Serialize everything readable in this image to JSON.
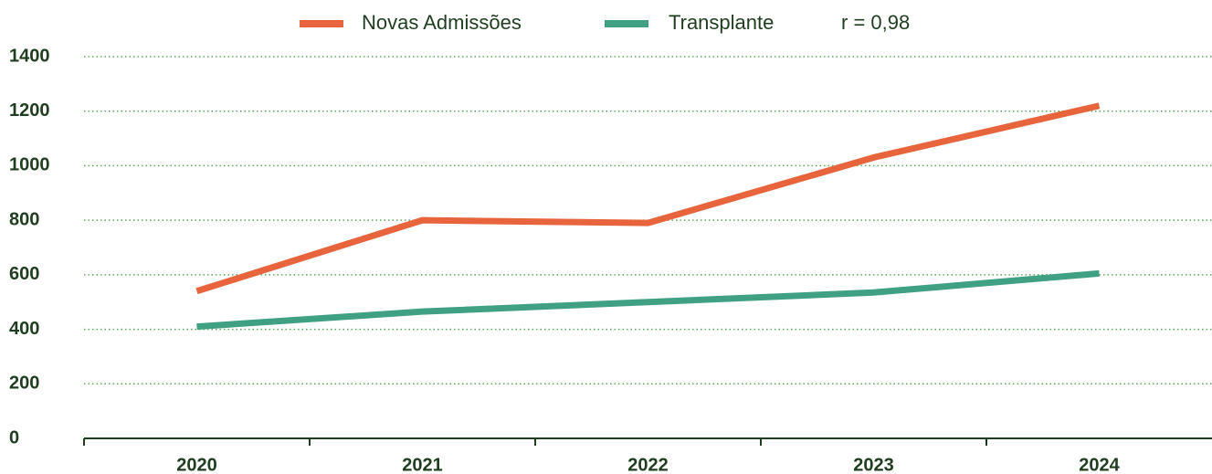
{
  "chart_data": {
    "type": "line",
    "categories": [
      "2020",
      "2021",
      "2022",
      "2023",
      "2024"
    ],
    "series": [
      {
        "name": "Novas Admissões",
        "color": "#e8643c",
        "values": [
          540,
          800,
          790,
          1030,
          1220
        ]
      },
      {
        "name": "Transplante",
        "color": "#3fa083",
        "values": [
          410,
          465,
          500,
          535,
          605
        ]
      }
    ],
    "annotation": "r = 0,98",
    "ylim": [
      0,
      1400
    ],
    "yticks": [
      0,
      200,
      400,
      600,
      800,
      1000,
      1200,
      1400
    ],
    "grid": true
  }
}
